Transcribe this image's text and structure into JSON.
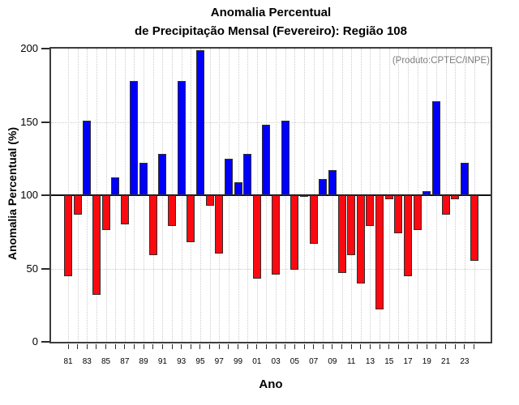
{
  "title": {
    "line1": "Anomalia Percentual",
    "line2": "de Precipitação Mensal (Fevereiro): Região 108"
  },
  "annotation": "(Produto:CPTEC/INPE)",
  "chart_data": {
    "type": "bar",
    "title": "Anomalia Percentual de Precipitação Mensal (Fevereiro): Região 108",
    "xlabel": "Ano",
    "ylabel": "Anomalia Percentual (%)",
    "ylim": [
      0,
      200
    ],
    "yticks": [
      0,
      50,
      100,
      150,
      200
    ],
    "ygrid_dotted": [
      50,
      150
    ],
    "baseline": 100,
    "grid": "dotted vertical line at every year, dotted horizontal at 50 and 150, solid line at 100",
    "legend_position": "none",
    "categories": [
      "81",
      "82",
      "83",
      "84",
      "85",
      "86",
      "87",
      "88",
      "89",
      "90",
      "91",
      "92",
      "93",
      "94",
      "95",
      "96",
      "97",
      "98",
      "99",
      "00",
      "01",
      "02",
      "03",
      "04",
      "05",
      "06",
      "07",
      "08",
      "09",
      "10",
      "11",
      "12",
      "13",
      "14",
      "15",
      "16",
      "17",
      "18",
      "19",
      "20",
      "21",
      "22",
      "23",
      "24"
    ],
    "values": [
      45,
      87,
      151,
      32,
      76,
      112,
      80,
      178,
      122,
      59,
      128,
      79,
      178,
      68,
      199,
      93,
      60,
      125,
      109,
      128,
      43,
      148,
      46,
      151,
      49,
      100,
      67,
      111,
      117,
      47,
      59,
      40,
      79,
      22,
      97,
      74,
      45,
      76,
      103,
      164,
      87,
      97,
      122,
      55
    ],
    "xtick_labels": [
      "81",
      "83",
      "85",
      "87",
      "89",
      "91",
      "93",
      "95",
      "97",
      "99",
      "01",
      "03",
      "05",
      "07",
      "09",
      "11",
      "13",
      "15",
      "17",
      "19",
      "21",
      "23"
    ],
    "colors": {
      "above_baseline": "#0000fa",
      "below_baseline": "#fa0a10",
      "bar_outline": "#2f2f2f",
      "annotation_gray": "#7d7d7d",
      "gridline": "#cccccc",
      "frame": "#3d3d3d"
    }
  }
}
